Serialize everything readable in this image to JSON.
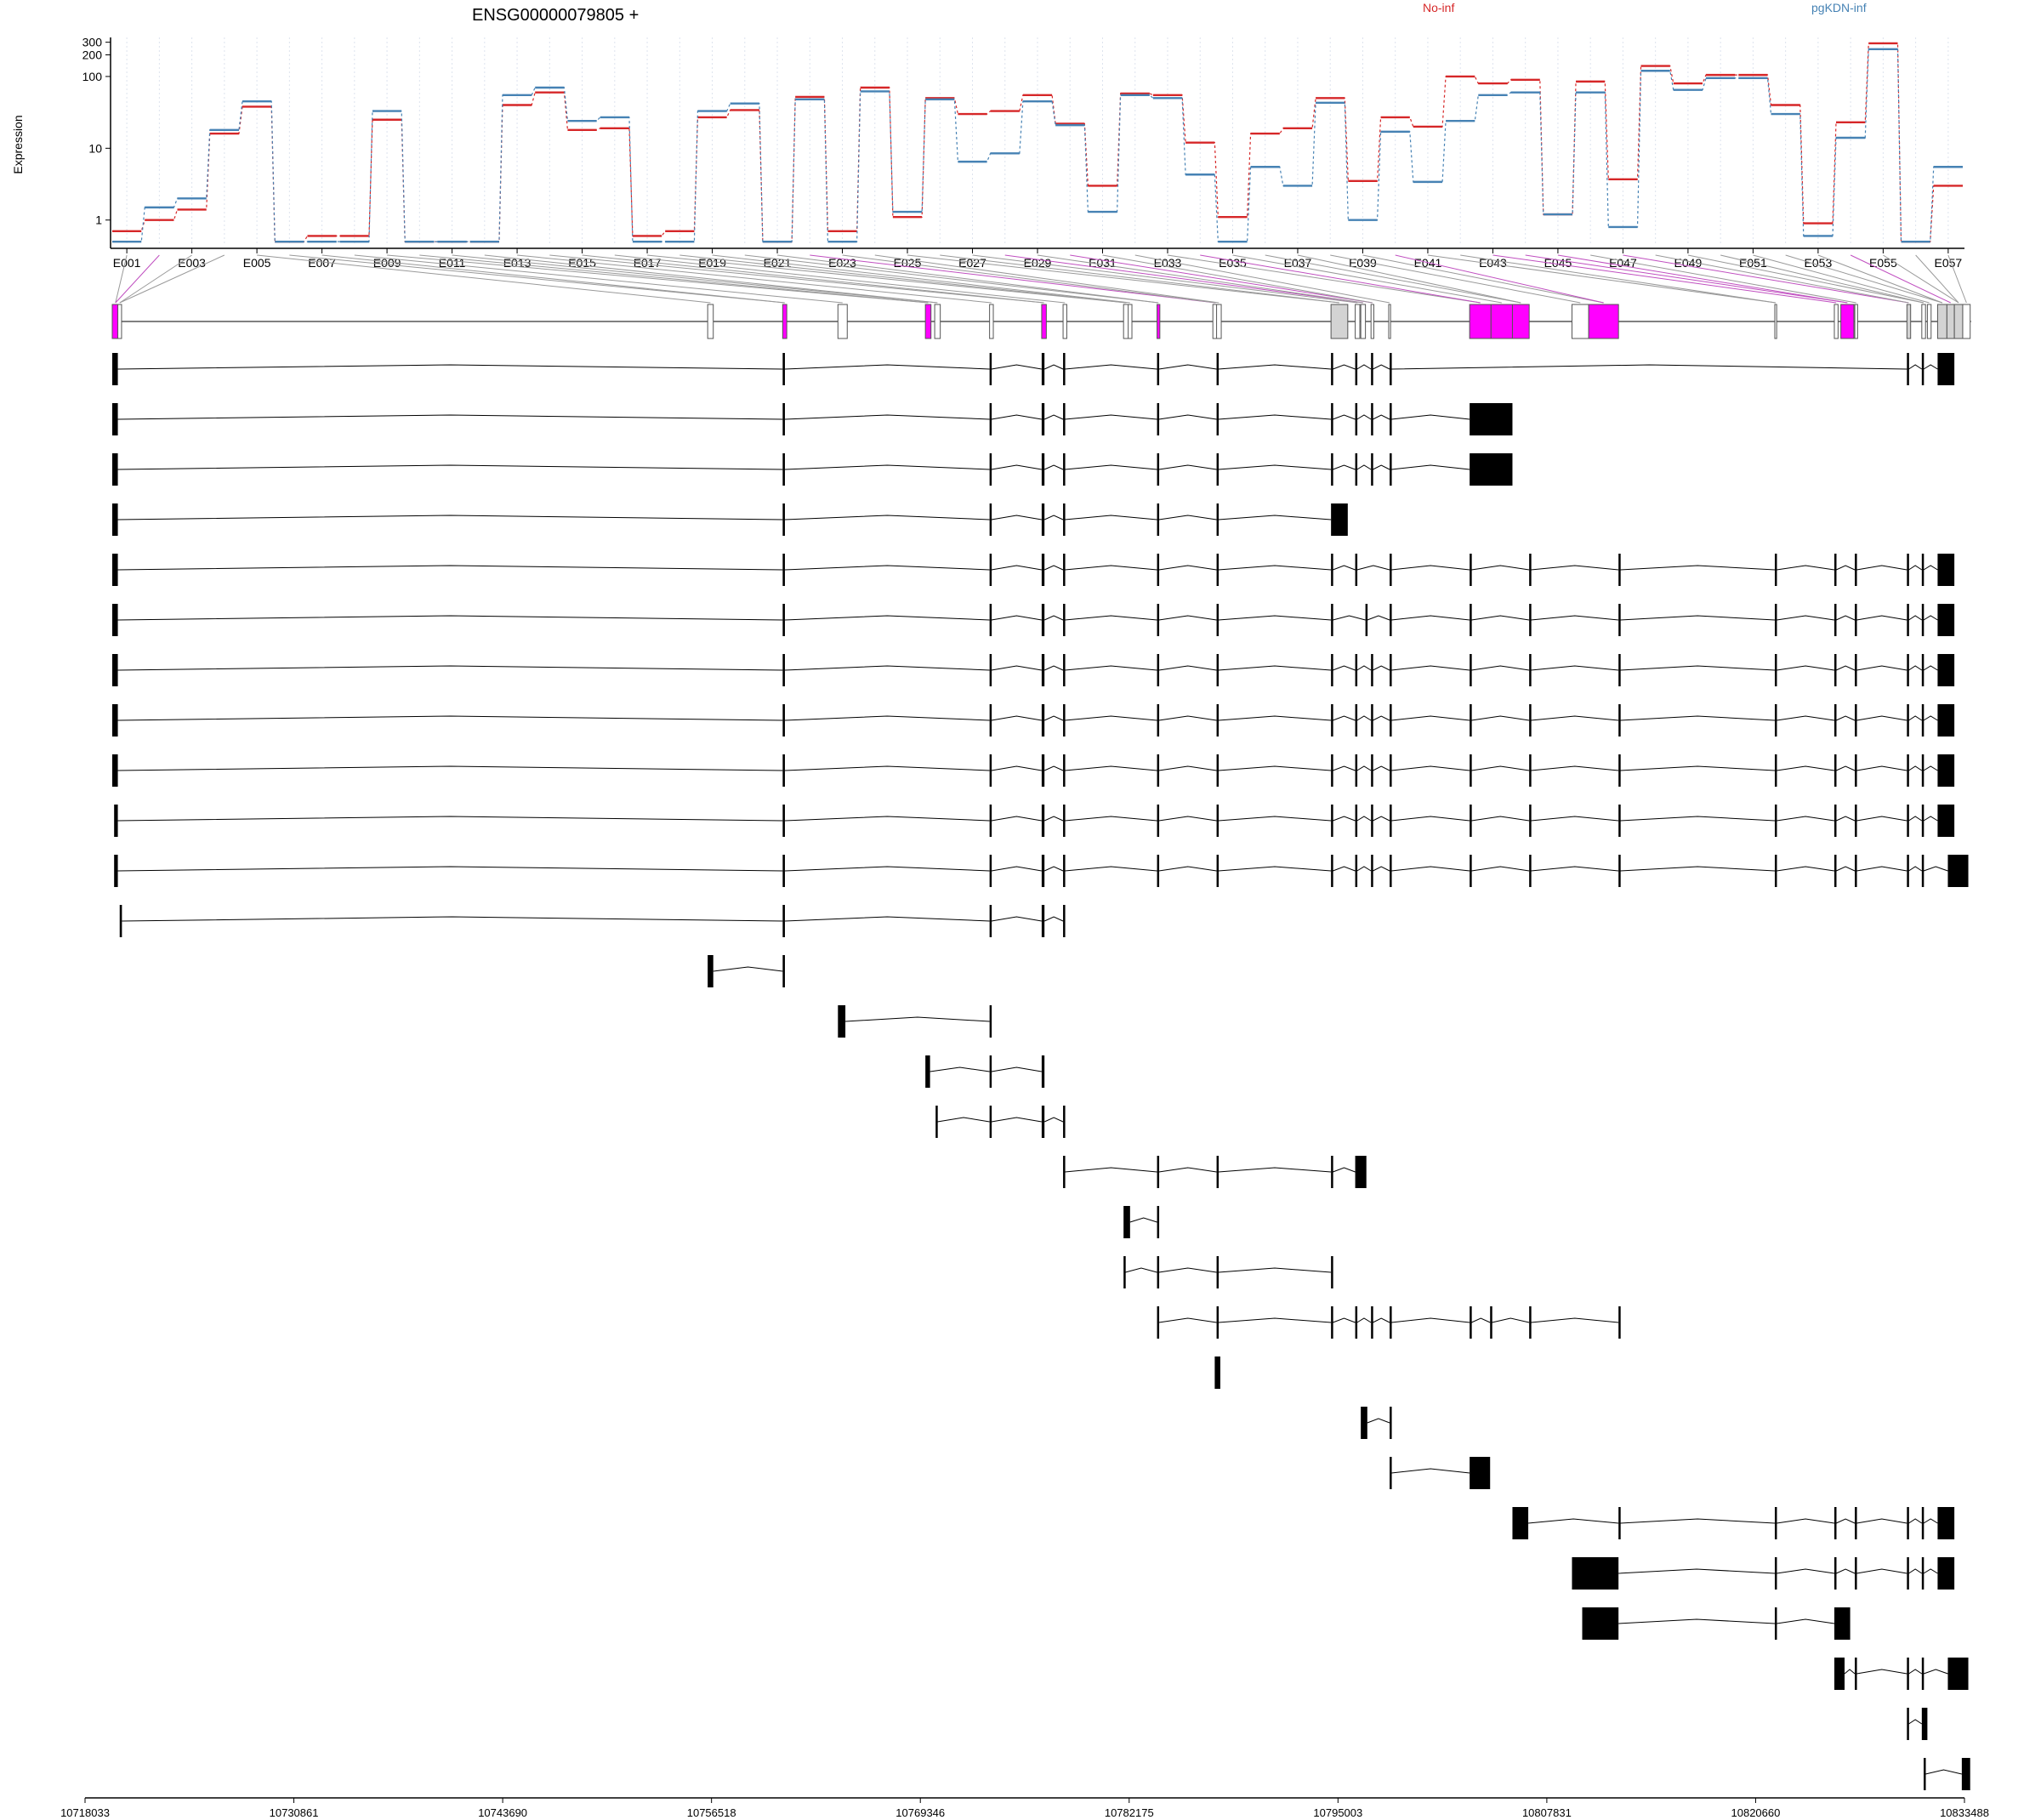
{
  "chart_data": {
    "type": "line",
    "title": "ENSG00000079805 +",
    "ylabel": "Expression",
    "yscale": "log",
    "ylim": [
      0.45,
      350
    ],
    "yticks": [
      "1",
      "10",
      "100",
      "200",
      "300"
    ],
    "legend_placement": "top",
    "grid": "vertical dotted",
    "exon_labels": [
      "E001",
      "E003",
      "E005",
      "E007",
      "E009",
      "E011",
      "E013",
      "E015",
      "E017",
      "E019",
      "E021",
      "E023",
      "E025",
      "E027",
      "E029",
      "E031",
      "E033",
      "E035",
      "E037",
      "E039",
      "E041",
      "E043",
      "E045",
      "E047",
      "E049",
      "E051",
      "E053",
      "E055",
      "E057"
    ],
    "genomic_coords": [
      "10718033",
      "10730861",
      "10743690",
      "10756518",
      "10769346",
      "10782175",
      "10795003",
      "10807831",
      "10820660",
      "10833488"
    ],
    "series": [
      {
        "name": "No-inf",
        "color": "#d62728",
        "values": [
          0.7,
          1.0,
          1.4,
          16,
          38,
          0.5,
          0.6,
          0.6,
          25,
          0.5,
          0.5,
          0.5,
          40,
          60,
          18,
          19,
          0.6,
          0.7,
          27,
          34,
          0.5,
          52,
          0.7,
          70,
          1.1,
          50,
          30,
          33,
          55,
          22,
          3.0,
          58,
          55,
          12,
          1.1,
          16,
          19,
          50,
          3.5,
          27,
          20,
          100,
          80,
          90,
          1.2,
          85,
          3.7,
          140,
          80,
          105,
          105,
          40,
          0.9,
          23,
          290,
          0.5,
          3.0
        ]
      },
      {
        "name": "pgKDN-inf",
        "color": "#4682b4",
        "values": [
          0.5,
          1.5,
          2.0,
          18,
          45,
          0.5,
          0.5,
          0.5,
          33,
          0.5,
          0.5,
          0.5,
          55,
          70,
          24,
          27,
          0.5,
          0.5,
          33,
          42,
          0.5,
          48,
          0.5,
          62,
          1.3,
          48,
          6.5,
          8.5,
          45,
          21,
          1.3,
          55,
          50,
          4.3,
          0.5,
          5.5,
          3.0,
          43,
          1.0,
          17,
          3.4,
          24,
          55,
          60,
          1.2,
          60,
          0.8,
          120,
          65,
          95,
          95,
          30,
          0.6,
          14,
          240,
          0.5,
          5.5
        ]
      }
    ]
  },
  "legend": {
    "no_inf": "No-inf",
    "pgkdn_inf": "pgKDN-inf"
  },
  "colors": {
    "no_inf": "#d62728",
    "pgkdn_inf": "#4682b4",
    "highlight": "#ff00ff",
    "exon_gray": "#d3d3d3",
    "connector_gray": "#999999"
  },
  "gene_model": {
    "highlighted_exons": [
      1,
      21,
      27,
      29,
      33,
      39,
      42,
      43,
      44,
      46,
      53
    ],
    "fill_gray_exons": [
      38,
      54,
      55,
      56,
      57
    ],
    "track_count": 31
  }
}
